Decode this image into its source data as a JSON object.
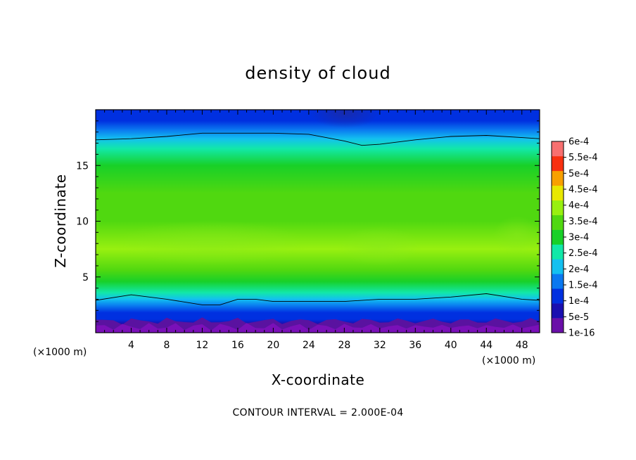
{
  "chart_data": {
    "type": "heatmap",
    "title": "density of cloud",
    "xlabel": "X-coordinate",
    "ylabel": "Z-coordinate",
    "x_unit": "(×1000 m)",
    "xlim": [
      0,
      50
    ],
    "ylim": [
      0,
      20
    ],
    "x_ticks": [
      "4",
      "8",
      "12",
      "16",
      "20",
      "24",
      "28",
      "32",
      "36",
      "40",
      "44",
      "48"
    ],
    "x_tick_values": [
      4,
      8,
      12,
      16,
      20,
      24,
      28,
      32,
      36,
      40,
      44,
      48
    ],
    "y_ticks": [
      "5",
      "10",
      "15"
    ],
    "y_tick_values": [
      5,
      10,
      15
    ],
    "colorbar": {
      "labels": [
        "1e-16",
        "5e-5",
        "1e-4",
        "1.5e-4",
        "2e-4",
        "2.5e-4",
        "3e-4",
        "3.5e-4",
        "4e-4",
        "4.5e-4",
        "5e-4",
        "5.5e-4",
        "6e-4"
      ],
      "colors": [
        "#6a0fa8",
        "#1a0fb0",
        "#0030e0",
        "#0a78f0",
        "#13c0f0",
        "#12e8a8",
        "#18d028",
        "#50d810",
        "#98f010",
        "#e8e800",
        "#f8a000",
        "#f83010",
        "#f87070"
      ]
    },
    "contour_levels": [
      0.0002
    ],
    "contour_lines": [
      {
        "level": 0.0002,
        "x": [
          0,
          4,
          8,
          12,
          16,
          20,
          24,
          28,
          30,
          32,
          36,
          40,
          44,
          48,
          50
        ],
        "z": [
          17.3,
          17.4,
          17.6,
          17.9,
          17.9,
          17.9,
          17.8,
          17.2,
          16.8,
          16.9,
          17.3,
          17.6,
          17.7,
          17.5,
          17.4
        ]
      },
      {
        "level": 0.0002,
        "x": [
          0,
          4,
          8,
          12,
          14,
          16,
          18,
          20,
          24,
          28,
          32,
          36,
          40,
          44,
          48,
          50
        ],
        "z": [
          2.9,
          3.4,
          3.0,
          2.5,
          2.5,
          3.0,
          3.0,
          2.8,
          2.8,
          2.8,
          3.0,
          3.0,
          3.2,
          3.5,
          3.0,
          2.9
        ]
      }
    ],
    "profile_z": [
      0,
      0.8,
      1.2,
      1.8,
      2.4,
      3.0,
      3.6,
      4.6,
      5.6,
      7.5,
      10,
      12.5,
      15,
      16.5,
      17.4,
      18.2,
      19,
      20
    ],
    "profile_value": [
      0,
      4e-05,
      8e-05,
      0.00012,
      0.00016,
      0.0002,
      0.00025,
      0.0003,
      0.00035,
      0.00038,
      0.00036,
      0.00033,
      0.00028,
      0.00024,
      0.0002,
      0.00016,
      0.00012,
      8e-05
    ],
    "grid": false,
    "legend": "right"
  },
  "footer": {
    "contour_interval": "CONTOUR INTERVAL = 2.000E-04"
  }
}
